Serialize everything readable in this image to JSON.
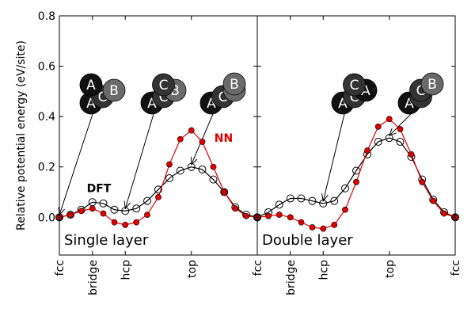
{
  "chart_data": {
    "type": "line",
    "ylabel": "Relative potential energy (eV/site)",
    "ylim": [
      -0.15,
      0.8
    ],
    "yticks": [
      "0.0",
      "0.2",
      "0.4",
      "0.6",
      "0.8"
    ],
    "ytick_values": [
      0.0,
      0.2,
      0.4,
      0.6,
      0.8
    ],
    "colors": {
      "dft": "#000000",
      "nn": "#e00000",
      "atom_dark": "#111111",
      "atom_mid": "#333333",
      "atom_light": "#6a6a6a"
    },
    "panels": [
      {
        "name": "Single layer",
        "label": "Single layer",
        "xticks": [
          {
            "x": 0.0,
            "label": "fcc"
          },
          {
            "x": 0.167,
            "label": "bridge"
          },
          {
            "x": 0.333,
            "label": "hcp"
          },
          {
            "x": 0.667,
            "label": "top"
          },
          {
            "x": 1.0,
            "label": "fcc"
          }
        ],
        "series": [
          {
            "key": "dft",
            "name": "DFT",
            "marker": "open-circle",
            "color": "#000000",
            "x": [
              0.0,
              0.056,
              0.111,
              0.167,
              0.222,
              0.278,
              0.333,
              0.389,
              0.444,
              0.5,
              0.556,
              0.611,
              0.667,
              0.722,
              0.778,
              0.833,
              0.889,
              0.944,
              1.0
            ],
            "y": [
              0.0,
              0.01,
              0.03,
              0.06,
              0.055,
              0.03,
              0.025,
              0.035,
              0.065,
              0.11,
              0.155,
              0.185,
              0.2,
              0.19,
              0.15,
              0.1,
              0.04,
              0.01,
              0.0
            ]
          },
          {
            "key": "nn",
            "name": "NN",
            "marker": "filled-circle",
            "color": "#e00000",
            "x": [
              0.0,
              0.056,
              0.111,
              0.167,
              0.222,
              0.278,
              0.333,
              0.389,
              0.444,
              0.5,
              0.556,
              0.611,
              0.667,
              0.722,
              0.778,
              0.833,
              0.889,
              0.944,
              1.0
            ],
            "y": [
              0.0,
              0.01,
              0.025,
              0.035,
              0.015,
              -0.02,
              -0.03,
              -0.02,
              0.01,
              0.08,
              0.21,
              0.31,
              0.345,
              0.3,
              0.2,
              0.1,
              0.035,
              0.005,
              0.0
            ]
          }
        ],
        "series_labels": [
          {
            "text": "DFT",
            "color": "#000000",
            "x": 0.2,
            "y": 0.1
          },
          {
            "text": "NN",
            "color": "#e00000",
            "x": 0.83,
            "y": 0.3
          }
        ],
        "atom_stacks": [
          {
            "target_x": 0.0,
            "atoms": [
              {
                "l": "A",
                "dx": 0,
                "dy": 0,
                "s": "dark"
              },
              {
                "l": "C",
                "dx": 0.5,
                "dy": -0.08,
                "s": "mid"
              },
              {
                "l": "B",
                "dx": 1.0,
                "dy": -0.16,
                "s": "light"
              },
              {
                "l": "A",
                "dx": 0,
                "dy": -0.23,
                "s": "dark"
              }
            ]
          },
          {
            "target_x": 0.333,
            "atoms": [
              {
                "l": "A",
                "dx": 0,
                "dy": 0,
                "s": "dark"
              },
              {
                "l": "C",
                "dx": 0.5,
                "dy": -0.08,
                "s": "mid"
              },
              {
                "l": "B",
                "dx": 1.0,
                "dy": -0.16,
                "s": "light"
              },
              {
                "l": "C",
                "dx": 0.5,
                "dy": -0.23,
                "s": "mid"
              }
            ]
          },
          {
            "target_x": 0.667,
            "atoms": [
              {
                "l": "A",
                "dx": 0,
                "dy": 0,
                "s": "dark"
              },
              {
                "l": "C",
                "dx": 0.5,
                "dy": -0.08,
                "s": "mid"
              },
              {
                "l": "B",
                "dx": 1.0,
                "dy": -0.16,
                "s": "light"
              },
              {
                "l": "B",
                "dx": 1.0,
                "dy": -0.24,
                "s": "light"
              }
            ]
          }
        ]
      },
      {
        "name": "Double layer",
        "label": "Double layer",
        "xticks": [
          {
            "x": 0.0,
            "label": ""
          },
          {
            "x": 0.167,
            "label": "bridge"
          },
          {
            "x": 0.333,
            "label": "hcp"
          },
          {
            "x": 0.667,
            "label": "top"
          },
          {
            "x": 1.0,
            "label": "fcc"
          }
        ],
        "series": [
          {
            "key": "dft",
            "name": "DFT",
            "marker": "open-circle",
            "color": "#000000",
            "x": [
              0.0,
              0.056,
              0.111,
              0.167,
              0.222,
              0.278,
              0.333,
              0.389,
              0.444,
              0.5,
              0.556,
              0.611,
              0.667,
              0.722,
              0.778,
              0.833,
              0.889,
              0.944,
              1.0
            ],
            "y": [
              0.0,
              0.02,
              0.05,
              0.075,
              0.075,
              0.065,
              0.055,
              0.065,
              0.115,
              0.185,
              0.25,
              0.3,
              0.315,
              0.3,
              0.24,
              0.15,
              0.07,
              0.02,
              0.0
            ]
          },
          {
            "key": "nn",
            "name": "NN",
            "marker": "filled-circle",
            "color": "#e00000",
            "x": [
              0.0,
              0.056,
              0.111,
              0.167,
              0.222,
              0.278,
              0.333,
              0.389,
              0.444,
              0.5,
              0.556,
              0.611,
              0.667,
              0.722,
              0.778,
              0.833,
              0.889,
              0.944,
              1.0
            ],
            "y": [
              0.0,
              0.005,
              0.01,
              0.0,
              -0.02,
              -0.04,
              -0.045,
              -0.03,
              0.03,
              0.14,
              0.265,
              0.36,
              0.39,
              0.35,
              0.25,
              0.14,
              0.065,
              0.015,
              0.0
            ]
          }
        ],
        "series_labels": [],
        "atom_stacks": [
          {
            "target_x": 0.333,
            "atoms": [
              {
                "l": "A",
                "dx": 0,
                "dy": 0,
                "s": "dark"
              },
              {
                "l": "C",
                "dx": 0.5,
                "dy": -0.08,
                "s": "mid"
              },
              {
                "l": "A",
                "dx": 1.0,
                "dy": -0.16,
                "s": "dark"
              },
              {
                "l": "C",
                "dx": 0.5,
                "dy": -0.23,
                "s": "mid"
              }
            ]
          },
          {
            "target_x": 0.667,
            "atoms": [
              {
                "l": "A",
                "dx": 0,
                "dy": 0,
                "s": "dark"
              },
              {
                "l": "C",
                "dx": 0.5,
                "dy": -0.08,
                "s": "mid"
              },
              {
                "l": "C",
                "dx": 0.5,
                "dy": -0.16,
                "s": "mid"
              },
              {
                "l": "B",
                "dx": 1.0,
                "dy": -0.24,
                "s": "light"
              }
            ]
          }
        ]
      }
    ]
  }
}
